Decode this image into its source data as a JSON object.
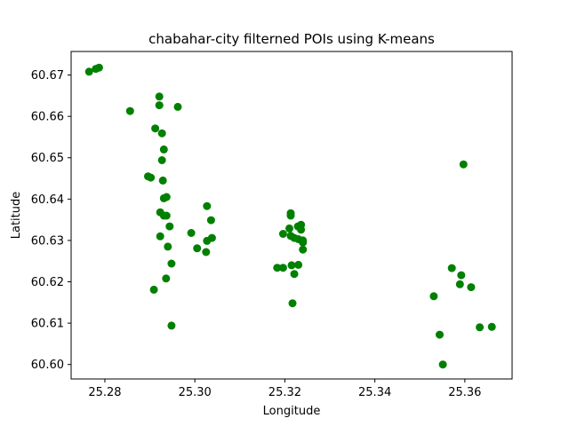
{
  "chart_data": {
    "type": "scatter",
    "title": "chabahar-city filterned POIs using K-means",
    "xlabel": "Longitude",
    "ylabel": "Latitude",
    "xlim": [
      25.2725,
      25.3705
    ],
    "ylim": [
      60.5965,
      60.6757
    ],
    "xticks": [
      25.28,
      25.3,
      25.32,
      25.34,
      25.36
    ],
    "xtick_labels": [
      "25.28",
      "25.30",
      "25.32",
      "25.34",
      "25.36"
    ],
    "yticks": [
      60.6,
      60.61,
      60.62,
      60.63,
      60.64,
      60.65,
      60.66,
      60.67
    ],
    "ytick_labels": [
      "60.60",
      "60.61",
      "60.62",
      "60.63",
      "60.64",
      "60.65",
      "60.66",
      "60.67"
    ],
    "grid": false,
    "marker_color": "#008000",
    "points": [
      {
        "x": 25.2765,
        "y": 60.6708
      },
      {
        "x": 25.278,
        "y": 60.6715
      },
      {
        "x": 25.2787,
        "y": 60.6718
      },
      {
        "x": 25.2856,
        "y": 60.6613
      },
      {
        "x": 25.2921,
        "y": 60.6648
      },
      {
        "x": 25.2921,
        "y": 60.6627
      },
      {
        "x": 25.2962,
        "y": 60.6623
      },
      {
        "x": 25.2912,
        "y": 60.6571
      },
      {
        "x": 25.2927,
        "y": 60.6559
      },
      {
        "x": 25.2931,
        "y": 60.652
      },
      {
        "x": 25.2927,
        "y": 60.6494
      },
      {
        "x": 25.2896,
        "y": 60.6455
      },
      {
        "x": 25.2902,
        "y": 60.6452
      },
      {
        "x": 25.2929,
        "y": 60.6445
      },
      {
        "x": 25.2931,
        "y": 60.6402
      },
      {
        "x": 25.2937,
        "y": 60.6405
      },
      {
        "x": 25.2923,
        "y": 60.6368
      },
      {
        "x": 25.2931,
        "y": 60.636
      },
      {
        "x": 25.2937,
        "y": 60.636
      },
      {
        "x": 25.2944,
        "y": 60.6334
      },
      {
        "x": 25.2923,
        "y": 60.631
      },
      {
        "x": 25.294,
        "y": 60.6285
      },
      {
        "x": 25.2948,
        "y": 60.6244
      },
      {
        "x": 25.2936,
        "y": 60.6208
      },
      {
        "x": 25.2909,
        "y": 60.6181
      },
      {
        "x": 25.2948,
        "y": 60.6094
      },
      {
        "x": 25.3027,
        "y": 60.6383
      },
      {
        "x": 25.3036,
        "y": 60.6349
      },
      {
        "x": 25.2992,
        "y": 60.6318
      },
      {
        "x": 25.3038,
        "y": 60.6306
      },
      {
        "x": 25.3027,
        "y": 60.6299
      },
      {
        "x": 25.3005,
        "y": 60.6281
      },
      {
        "x": 25.3025,
        "y": 60.6272
      },
      {
        "x": 25.3213,
        "y": 60.6366
      },
      {
        "x": 25.3213,
        "y": 60.636
      },
      {
        "x": 25.3236,
        "y": 60.6338
      },
      {
        "x": 25.3229,
        "y": 60.6334
      },
      {
        "x": 25.321,
        "y": 60.6329
      },
      {
        "x": 25.3236,
        "y": 60.6326
      },
      {
        "x": 25.3196,
        "y": 60.6316
      },
      {
        "x": 25.3213,
        "y": 60.6311
      },
      {
        "x": 25.3221,
        "y": 60.6306
      },
      {
        "x": 25.323,
        "y": 60.6303
      },
      {
        "x": 25.324,
        "y": 60.63
      },
      {
        "x": 25.324,
        "y": 60.6295
      },
      {
        "x": 25.324,
        "y": 60.6278
      },
      {
        "x": 25.3183,
        "y": 60.6234
      },
      {
        "x": 25.3196,
        "y": 60.6234
      },
      {
        "x": 25.3215,
        "y": 60.624
      },
      {
        "x": 25.323,
        "y": 60.6241
      },
      {
        "x": 25.3221,
        "y": 60.6219
      },
      {
        "x": 25.3217,
        "y": 60.6148
      },
      {
        "x": 25.3597,
        "y": 60.6484
      },
      {
        "x": 25.3571,
        "y": 60.6233
      },
      {
        "x": 25.3592,
        "y": 60.6216
      },
      {
        "x": 25.3589,
        "y": 60.6194
      },
      {
        "x": 25.3614,
        "y": 60.6187
      },
      {
        "x": 25.3531,
        "y": 60.6165
      },
      {
        "x": 25.3633,
        "y": 60.609
      },
      {
        "x": 25.366,
        "y": 60.6091
      },
      {
        "x": 25.3544,
        "y": 60.6072
      },
      {
        "x": 25.3551,
        "y": 60.6
      }
    ]
  }
}
